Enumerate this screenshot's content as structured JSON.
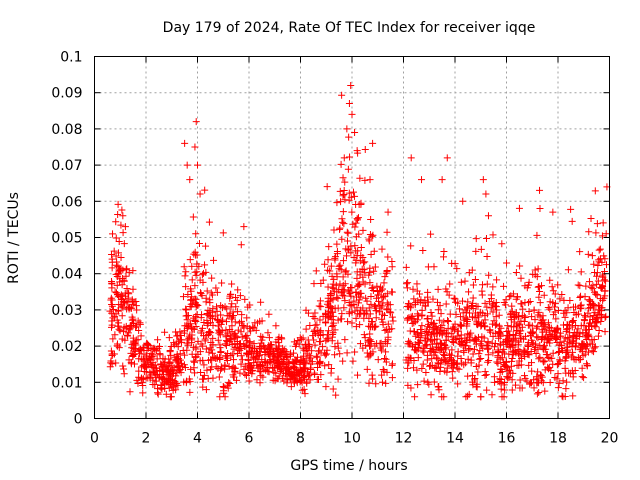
{
  "chart_data": {
    "type": "scatter",
    "title": "Day 179 of 2024, Rate Of TEC Index for receiver iqqe",
    "xlabel": "GPS time / hours",
    "ylabel": "ROTI / TECUs",
    "xlim": [
      0,
      20
    ],
    "ylim": [
      0,
      0.1
    ],
    "xticks": [
      0,
      2,
      4,
      6,
      8,
      10,
      12,
      14,
      16,
      18,
      20
    ],
    "yticks": [
      0,
      0.01,
      0.02,
      0.03,
      0.04,
      0.05,
      0.06,
      0.07,
      0.08,
      0.09,
      0.1
    ],
    "xtick_labels": [
      "0",
      "2",
      "4",
      "6",
      "8",
      "10",
      "12",
      "14",
      "16",
      "18",
      "20"
    ],
    "ytick_labels": [
      "0",
      "0.01",
      "0.02",
      "0.03",
      "0.04",
      "0.05",
      "0.06",
      "0.07",
      "0.08",
      "0.09",
      "0.1"
    ],
    "grid": true,
    "marker": "plus",
    "series_color": "#ff0000",
    "gap_hours": [
      11.6,
      12.1
    ],
    "profile": [
      [
        0.6,
        0.03,
        0.012
      ],
      [
        0.8,
        0.035,
        0.015
      ],
      [
        1.0,
        0.032,
        0.015
      ],
      [
        1.2,
        0.03,
        0.014
      ],
      [
        1.5,
        0.022,
        0.01
      ],
      [
        2.0,
        0.016,
        0.006
      ],
      [
        2.5,
        0.013,
        0.005
      ],
      [
        3.0,
        0.012,
        0.005
      ],
      [
        3.5,
        0.02,
        0.012
      ],
      [
        3.9,
        0.03,
        0.018
      ],
      [
        4.3,
        0.024,
        0.014
      ],
      [
        5.0,
        0.02,
        0.01
      ],
      [
        5.6,
        0.022,
        0.01
      ],
      [
        6.0,
        0.018,
        0.006
      ],
      [
        7.0,
        0.016,
        0.005
      ],
      [
        8.0,
        0.014,
        0.005
      ],
      [
        8.6,
        0.02,
        0.01
      ],
      [
        9.3,
        0.03,
        0.016
      ],
      [
        9.8,
        0.045,
        0.022
      ],
      [
        10.2,
        0.04,
        0.02
      ],
      [
        10.8,
        0.028,
        0.014
      ],
      [
        11.5,
        0.024,
        0.012
      ],
      [
        12.2,
        0.025,
        0.012
      ],
      [
        13.0,
        0.022,
        0.012
      ],
      [
        14.0,
        0.022,
        0.012
      ],
      [
        15.0,
        0.024,
        0.014
      ],
      [
        16.0,
        0.02,
        0.012
      ],
      [
        17.0,
        0.022,
        0.012
      ],
      [
        18.0,
        0.02,
        0.012
      ],
      [
        19.0,
        0.022,
        0.012
      ],
      [
        19.5,
        0.034,
        0.012
      ],
      [
        19.9,
        0.04,
        0.01
      ]
    ],
    "highlights": [
      [
        1.1,
        0.056
      ],
      [
        1.2,
        0.053
      ],
      [
        0.7,
        0.051
      ],
      [
        3.5,
        0.076
      ],
      [
        3.6,
        0.07
      ],
      [
        3.7,
        0.066
      ],
      [
        3.9,
        0.075
      ],
      [
        3.95,
        0.082
      ],
      [
        4.0,
        0.07
      ],
      [
        4.1,
        0.062
      ],
      [
        5.8,
        0.053
      ],
      [
        5.7,
        0.048
      ],
      [
        9.7,
        0.072
      ],
      [
        9.8,
        0.08
      ],
      [
        9.9,
        0.087
      ],
      [
        9.95,
        0.092
      ],
      [
        10.0,
        0.084
      ],
      [
        10.1,
        0.079
      ],
      [
        10.2,
        0.074
      ],
      [
        10.8,
        0.076
      ],
      [
        10.7,
        0.066
      ],
      [
        11.4,
        0.057
      ],
      [
        12.3,
        0.072
      ],
      [
        12.7,
        0.066
      ],
      [
        13.5,
        0.066
      ],
      [
        13.7,
        0.072
      ],
      [
        14.3,
        0.06
      ],
      [
        15.1,
        0.066
      ],
      [
        15.2,
        0.062
      ],
      [
        15.3,
        0.056
      ],
      [
        17.3,
        0.058
      ],
      [
        17.8,
        0.057
      ],
      [
        19.9,
        0.064
      ]
    ],
    "point_count": 2600
  }
}
